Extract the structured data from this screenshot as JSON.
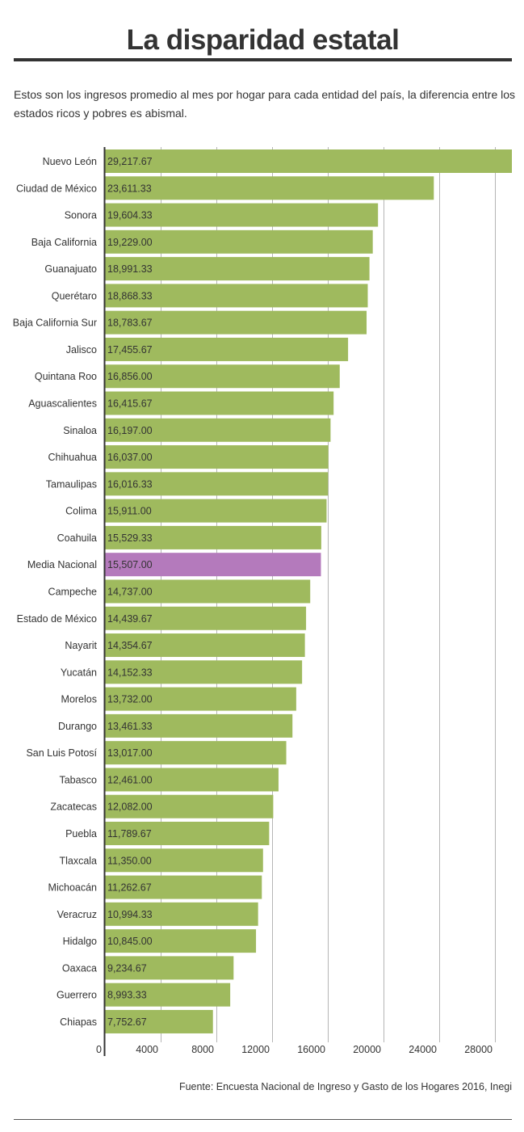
{
  "header": {
    "title": "La disparidad estatal",
    "subtitle": "Estos son los ingresos promedio al mes por hogar para cada entidad del país, la diferencia entre los estados ricos y pobres es abismal."
  },
  "footer": {
    "source": "Fuente: Encuesta Nacional de Ingreso y Gasto de los Hogares 2016, Inegi"
  },
  "colors": {
    "bar": "#9fba5e",
    "highlight": "#b47abc",
    "grid": "#b5b5b5",
    "axis": "#333333",
    "text": "#333333"
  },
  "chart_data": {
    "type": "bar",
    "orientation": "horizontal",
    "xlim": [
      0,
      29217.67
    ],
    "grid": true,
    "xticks": [
      0,
      4000,
      8000,
      12000,
      16000,
      20000,
      24000,
      28000
    ],
    "xtick_labels": [
      "0",
      "4000",
      "8000",
      "12000",
      "16000",
      "20000",
      "24000",
      "28000"
    ],
    "categories": [
      "Nuevo León",
      "Ciudad de México",
      "Sonora",
      "Baja California",
      "Guanajuato",
      "Querétaro",
      "Baja California Sur",
      "Jalisco",
      "Quintana Roo",
      "Aguascalientes",
      "Sinaloa",
      "Chihuahua",
      "Tamaulipas",
      "Colima",
      "Coahuila",
      "Media Nacional",
      "Campeche",
      "Estado de México",
      "Nayarit",
      "Yucatán",
      "Morelos",
      "Durango",
      "San Luis Potosí",
      "Tabasco",
      "Zacatecas",
      "Puebla",
      "Tlaxcala",
      "Michoacán",
      "Veracruz",
      "Hidalgo",
      "Oaxaca",
      "Guerrero",
      "Chiapas"
    ],
    "values": [
      29217.67,
      23611.33,
      19604.33,
      19229.0,
      18991.33,
      18868.33,
      18783.67,
      17455.67,
      16856.0,
      16415.67,
      16197.0,
      16037.0,
      16016.33,
      15911.0,
      15529.33,
      15507.0,
      14737.0,
      14439.67,
      14354.67,
      14152.33,
      13732.0,
      13461.33,
      13017.0,
      12461.0,
      12082.0,
      11789.67,
      11350.0,
      11262.67,
      10994.33,
      10845.0,
      9234.67,
      8993.33,
      7752.67
    ],
    "value_labels": [
      "29,217.67",
      "23,611.33",
      "19,604.33",
      "19,229.00",
      "18,991.33",
      "18,868.33",
      "18,783.67",
      "17,455.67",
      "16,856.00",
      "16,415.67",
      "16,197.00",
      "16,037.00",
      "16,016.33",
      "15,911.00",
      "15,529.33",
      "15,507.00",
      "14,737.00",
      "14,439.67",
      "14,354.67",
      "14,152.33",
      "13,732.00",
      "13,461.33",
      "13,017.00",
      "12,461.00",
      "12,082.00",
      "11,789.67",
      "11,350.00",
      "11,262.67",
      "10,994.33",
      "10,845.00",
      "9,234.67",
      "8,993.33",
      "7,752.67"
    ],
    "highlight_category": "Media Nacional"
  }
}
